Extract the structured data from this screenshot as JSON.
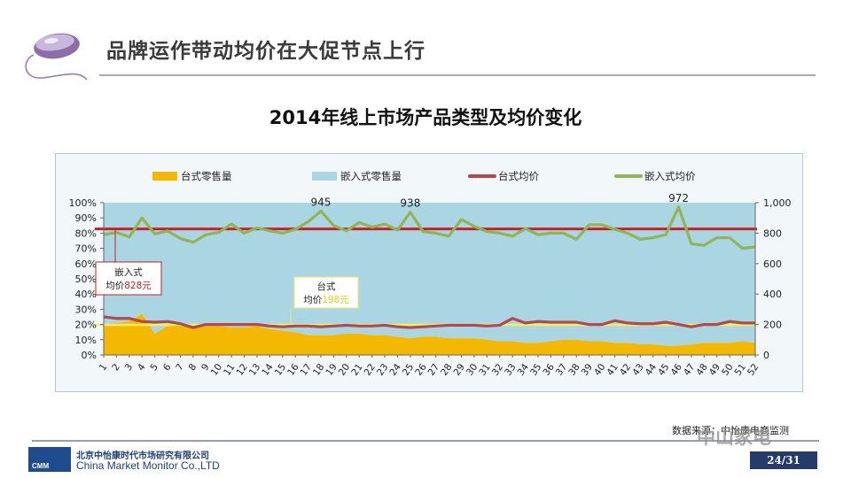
{
  "slide": {
    "title": "品牌运作带动均价在大促节点上行",
    "chart_title": "2014年线上市场产品类型及均价变化",
    "source": "数据来源：中怡康电商监测",
    "page": "24/31"
  },
  "company": {
    "cn": "北京中怡康时代市场研究有限公司",
    "en": "China Market Monitor Co.,LTD",
    "mark": "CMM"
  },
  "watermark": "中山家电",
  "colors": {
    "desktop_volume": "#f5b800",
    "embedded_volume": "#a9d6e2",
    "desktop_price": "#b5474d",
    "embedded_price": "#92b456",
    "ref_embedded": "#cc1f1f",
    "ref_desktop": "#f0f060"
  },
  "chart_data": {
    "type": "area+line",
    "title": "2014年线上市场产品类型及均价变化",
    "legend": [
      "台式零售量",
      "嵌入式零售量",
      "台式均价",
      "嵌入式均价"
    ],
    "legend_position": "top",
    "x": [
      1,
      2,
      3,
      4,
      5,
      6,
      7,
      8,
      9,
      10,
      11,
      12,
      13,
      14,
      15,
      16,
      17,
      18,
      19,
      20,
      21,
      22,
      23,
      24,
      25,
      26,
      27,
      28,
      29,
      30,
      31,
      32,
      33,
      34,
      35,
      36,
      37,
      38,
      39,
      40,
      41,
      42,
      43,
      44,
      45,
      46,
      47,
      48,
      49,
      50,
      51,
      52
    ],
    "y_left": {
      "ticks": [
        "0%",
        "10%",
        "20%",
        "30%",
        "40%",
        "50%",
        "60%",
        "70%",
        "80%",
        "90%",
        "100%"
      ],
      "range": [
        0,
        100
      ]
    },
    "y_right": {
      "ticks": [
        "0",
        "200",
        "400",
        "600",
        "800",
        "1,000"
      ],
      "range": [
        0,
        1000
      ]
    },
    "series": [
      {
        "name": "台式零售量",
        "axis": "left",
        "kind": "area",
        "values": [
          20,
          21,
          22,
          27,
          14,
          19,
          20,
          18,
          19,
          19,
          18,
          18,
          19,
          17,
          16,
          15,
          13,
          13,
          13,
          14,
          14,
          13,
          13,
          12,
          11,
          12,
          12,
          11,
          11,
          11,
          10,
          9,
          9,
          8,
          8,
          9,
          10,
          10,
          9,
          9,
          8,
          8,
          7,
          7,
          6,
          6,
          7,
          8,
          8,
          8,
          9,
          8
        ]
      },
      {
        "name": "嵌入式零售量",
        "axis": "left",
        "kind": "area",
        "values": [
          80,
          79,
          78,
          73,
          86,
          81,
          80,
          82,
          81,
          81,
          82,
          82,
          81,
          83,
          84,
          85,
          87,
          87,
          87,
          86,
          86,
          87,
          87,
          88,
          89,
          88,
          88,
          89,
          89,
          89,
          90,
          91,
          91,
          92,
          92,
          91,
          90,
          90,
          91,
          91,
          92,
          92,
          93,
          93,
          94,
          94,
          93,
          92,
          92,
          92,
          91,
          92
        ]
      },
      {
        "name": "台式均价",
        "axis": "right",
        "kind": "line",
        "values": [
          250,
          240,
          240,
          220,
          215,
          220,
          205,
          180,
          200,
          200,
          200,
          200,
          200,
          190,
          185,
          190,
          190,
          185,
          190,
          195,
          190,
          190,
          195,
          185,
          180,
          185,
          190,
          195,
          195,
          195,
          190,
          195,
          240,
          210,
          220,
          215,
          215,
          215,
          200,
          200,
          225,
          210,
          205,
          205,
          215,
          200,
          185,
          200,
          200,
          220,
          210,
          210
        ]
      },
      {
        "name": "嵌入式均价",
        "axis": "right",
        "kind": "line",
        "values": [
          790,
          805,
          775,
          900,
          795,
          815,
          765,
          740,
          790,
          805,
          860,
          800,
          835,
          815,
          800,
          825,
          875,
          945,
          850,
          815,
          870,
          840,
          860,
          820,
          938,
          810,
          800,
          780,
          890,
          845,
          810,
          800,
          780,
          830,
          790,
          800,
          800,
          760,
          855,
          855,
          825,
          800,
          760,
          770,
          790,
          972,
          730,
          720,
          770,
          770,
          700,
          710
        ]
      }
    ],
    "annotations": [
      {
        "text": "945",
        "series": "嵌入式均价",
        "x": 18
      },
      {
        "text": "938",
        "series": "嵌入式均价",
        "x": 25
      },
      {
        "text": "972",
        "series": "嵌入式均价",
        "x": 46
      }
    ],
    "reference_lines": [
      {
        "name": "嵌入式均价平均",
        "value": 828,
        "axis": "right",
        "label_line1": "嵌入式",
        "label_line2": "均价",
        "label_value": "828元"
      },
      {
        "name": "台式均价平均",
        "value": 198,
        "axis": "right",
        "label_line1": "台式",
        "label_line2": "均价",
        "label_value": "198元"
      }
    ],
    "grid": false
  }
}
